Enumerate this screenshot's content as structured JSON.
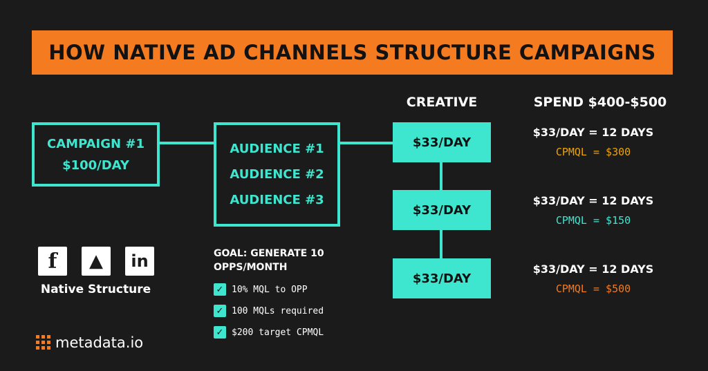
{
  "title": "HOW NATIVE AD CHANNELS STRUCTURE CAMPAIGNS",
  "campaign": {
    "line1": "CAMPAIGN #1",
    "line2": "$100/DAY"
  },
  "audiences": [
    "AUDIENCE #1",
    "AUDIENCE #2",
    "AUDIENCE #3"
  ],
  "creative_header": "CREATIVE",
  "creatives": [
    "$33/DAY",
    "$33/DAY",
    "$33/DAY"
  ],
  "spend_header": "SPEND $400-$500",
  "spend_items": [
    {
      "line": "$33/DAY = 12 DAYS",
      "cpmql": "CPMQL = $300",
      "color": "#f0a400"
    },
    {
      "line": "$33/DAY = 12 DAYS",
      "cpmql": "CPMQL = $150",
      "color": "#3fe6cf"
    },
    {
      "line": "$33/DAY = 12 DAYS",
      "cpmql": "CPMQL = $500",
      "color": "#f47b20"
    }
  ],
  "social_icons": [
    {
      "name": "facebook-icon",
      "glyph": "f"
    },
    {
      "name": "adroll-icon",
      "glyph": "▲"
    },
    {
      "name": "linkedin-icon",
      "glyph": "in"
    }
  ],
  "native_label": "Native Structure",
  "goal": {
    "title": "GOAL: GENERATE 10 OPPS/MONTH",
    "items": [
      "10% MQL to OPP",
      "100 MQLs required",
      "$200 target CPMQL"
    ]
  },
  "logo_text": "metadata.io",
  "colors": {
    "accent": "#f47b20",
    "teal": "#3fe6cf",
    "background": "#1b1b1b"
  }
}
